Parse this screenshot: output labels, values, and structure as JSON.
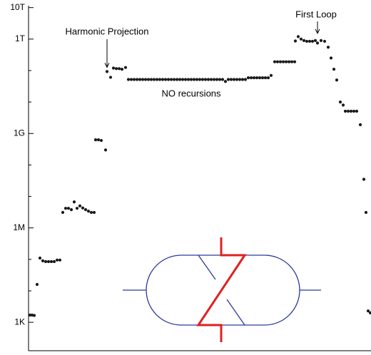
{
  "chart_data": {
    "type": "scatter",
    "log_y": true,
    "color": "#1a1a1a",
    "xlim": [
      0,
      480
    ],
    "ylim": [
      125,
      11500000000000
    ],
    "yticks": [
      {
        "value": 1000,
        "label": "1K"
      },
      {
        "value": 1000000,
        "label": "1M"
      },
      {
        "value": 1000000000,
        "label": "1G"
      },
      {
        "value": 1000000000000,
        "label": "1T"
      },
      {
        "value": 10000000000000,
        "label": "10T"
      }
    ],
    "yticks_minor": [
      10000,
      100000,
      10000000,
      100000000,
      10000000000,
      100000000000
    ],
    "annotations": [
      {
        "text": "Harmonic Projection",
        "x": 110,
        "y": 93000000000
      },
      {
        "text": "First Loop",
        "x": 405,
        "y": 1000000000000
      },
      {
        "text": "NO recursions"
      }
    ],
    "x": [
      2,
      5,
      8,
      12,
      16,
      20,
      24,
      28,
      32,
      36,
      40,
      44,
      48,
      52,
      56,
      60,
      64,
      68,
      72,
      76,
      80,
      84,
      88,
      92,
      94,
      98,
      102,
      108,
      110,
      115,
      119,
      123,
      127,
      131,
      136,
      140,
      144,
      148,
      152,
      156,
      160,
      164,
      168,
      172,
      176,
      180,
      184,
      188,
      192,
      196,
      200,
      204,
      208,
      212,
      216,
      220,
      224,
      228,
      232,
      236,
      240,
      244,
      248,
      252,
      256,
      260,
      264,
      268,
      272,
      276,
      280,
      284,
      288,
      292,
      296,
      300,
      304,
      308,
      312,
      316,
      320,
      324,
      328,
      332,
      336,
      340,
      345,
      349,
      353,
      357,
      361,
      365,
      369,
      373,
      374,
      378,
      382,
      386,
      390,
      394,
      398,
      402,
      405,
      410,
      415,
      420,
      424,
      428,
      432,
      437,
      441,
      444,
      448,
      452,
      456,
      460,
      465,
      470,
      473,
      476,
      479
    ],
    "values": [
      1700,
      1700,
      1650,
      16000,
      110000,
      90000,
      85000,
      85000,
      85000,
      85000,
      95000,
      95000,
      3100000,
      4200000,
      4200000,
      3800000,
      6700000,
      4200000,
      5000000,
      4300000,
      3800000,
      3400000,
      3100000,
      3100000,
      630000000,
      630000000,
      600000000,
      300000000,
      93000000000,
      61000000000,
      120000000000,
      115000000000,
      115000000000,
      110000000000,
      125000000000,
      52000000000,
      52000000000,
      52000000000,
      52000000000,
      52000000000,
      52000000000,
      52000000000,
      52000000000,
      52000000000,
      52000000000,
      52000000000,
      52000000000,
      52000000000,
      52000000000,
      52000000000,
      52000000000,
      52000000000,
      52000000000,
      52000000000,
      52000000000,
      52000000000,
      52000000000,
      52000000000,
      52000000000,
      52000000000,
      52000000000,
      52000000000,
      52000000000,
      52000000000,
      52000000000,
      52000000000,
      52000000000,
      52000000000,
      52000000000,
      45000000000,
      52000000000,
      52000000000,
      52000000000,
      52000000000,
      52000000000,
      52000000000,
      52000000000,
      59000000000,
      59000000000,
      59000000000,
      59000000000,
      59000000000,
      59000000000,
      59000000000,
      59000000000,
      70000000000,
      190000000000,
      190000000000,
      190000000000,
      190000000000,
      190000000000,
      190000000000,
      190000000000,
      190000000000,
      870000000000,
      1200000000000,
      1000000000000,
      900000000000,
      850000000000,
      850000000000,
      850000000000,
      900000000000,
      750000000000,
      900000000000,
      850000000000,
      550000000000,
      250000000000,
      110000000000,
      50000000000,
      10000000000,
      8000000000,
      5100000000,
      5100000000,
      5100000000,
      5100000000,
      5100000000,
      1900000000,
      35000000,
      3100000,
      2300,
      2000
    ]
  }
}
